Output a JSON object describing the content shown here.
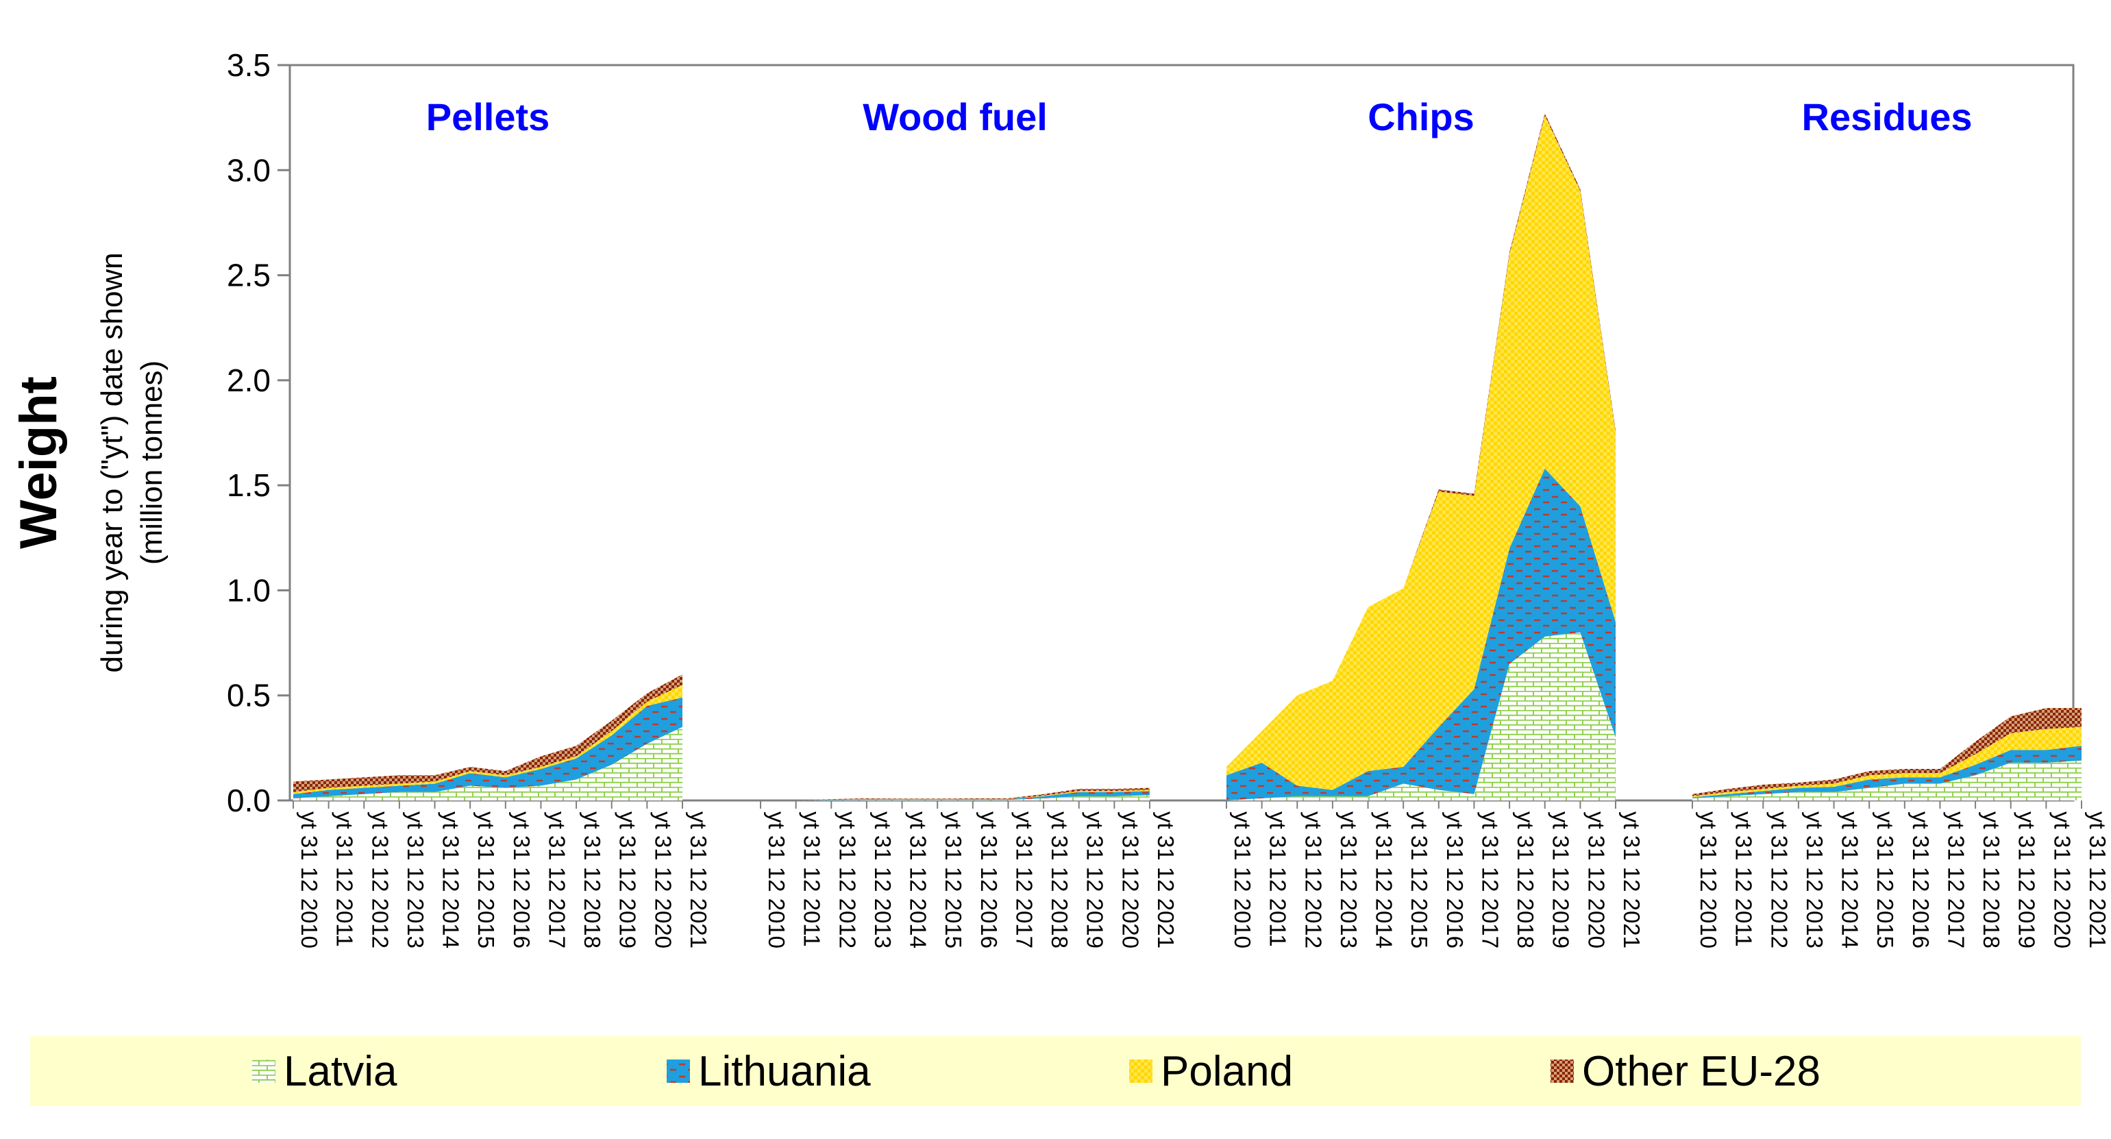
{
  "chart_data": {
    "type": "area",
    "stacked": true,
    "ylabel_main": "Weight",
    "ylabel_sub_1": "during year to (\"yt\") date shown",
    "ylabel_sub_2": "(million tonnes)",
    "ylim": [
      0,
      3.5
    ],
    "yticks": [
      "0.0",
      "0.5",
      "1.0",
      "1.5",
      "2.0",
      "2.5",
      "3.0",
      "3.5"
    ],
    "grid": false,
    "legend_position": "bottom",
    "colors": {
      "Latvia": "#92d050",
      "Lithuania": "#1f9fde",
      "Poland": "#ffd700",
      "Other EU-28": "#8b2500",
      "group_label": "#0000ff",
      "legend_band": "#ffffcc"
    },
    "series_names": [
      "Latvia",
      "Lithuania",
      "Poland",
      "Other EU-28"
    ],
    "groups": [
      {
        "label": "Pellets",
        "x": [
          "yt 31 12 2010",
          "yt 31 12 2011",
          "yt 31 12 2012",
          "yt 31 12 2013",
          "yt 31 12 2014",
          "yt 31 12 2015",
          "yt 31 12 2016",
          "yt 31 12 2017",
          "yt 31 12 2018",
          "yt 31 12 2019",
          "yt 31 12 2020",
          "yt 31 12 2021"
        ],
        "series": [
          {
            "name": "Latvia",
            "values": [
              0.01,
              0.02,
              0.03,
              0.04,
              0.04,
              0.07,
              0.06,
              0.07,
              0.1,
              0.17,
              0.27,
              0.35
            ]
          },
          {
            "name": "Lithuania",
            "values": [
              0.02,
              0.03,
              0.03,
              0.03,
              0.04,
              0.06,
              0.05,
              0.08,
              0.1,
              0.14,
              0.18,
              0.14
            ]
          },
          {
            "name": "Poland",
            "values": [
              0.01,
              0.01,
              0.01,
              0.01,
              0.01,
              0.01,
              0.01,
              0.01,
              0.01,
              0.02,
              0.02,
              0.06
            ]
          },
          {
            "name": "Other EU-28",
            "values": [
              0.05,
              0.04,
              0.04,
              0.04,
              0.03,
              0.02,
              0.02,
              0.05,
              0.05,
              0.05,
              0.04,
              0.05
            ]
          }
        ]
      },
      {
        "label": "Wood fuel",
        "x": [
          "yt 31 12 2010",
          "yt 31 12 2011",
          "yt 31 12 2012",
          "yt 31 12 2013",
          "yt 31 12 2014",
          "yt 31 12 2015",
          "yt 31 12 2016",
          "yt 31 12 2017",
          "yt 31 12 2018",
          "yt 31 12 2019",
          "yt 31 12 2020",
          "yt 31 12 2021"
        ],
        "series": [
          {
            "name": "Latvia",
            "values": [
              0.0,
              0.0,
              0.002,
              0.003,
              0.003,
              0.003,
              0.003,
              0.003,
              0.01,
              0.02,
              0.02,
              0.025
            ]
          },
          {
            "name": "Lithuania",
            "values": [
              0.0,
              0.0,
              0.002,
              0.003,
              0.003,
              0.003,
              0.003,
              0.003,
              0.01,
              0.02,
              0.02,
              0.02
            ]
          },
          {
            "name": "Poland",
            "values": [
              0.0,
              0.0,
              0.0,
              0.001,
              0.001,
              0.001,
              0.001,
              0.001,
              0.003,
              0.005,
              0.005,
              0.005
            ]
          },
          {
            "name": "Other EU-28",
            "values": [
              0.0,
              0.0,
              0.002,
              0.003,
              0.002,
              0.002,
              0.003,
              0.003,
              0.007,
              0.01,
              0.01,
              0.01
            ]
          }
        ]
      },
      {
        "label": "Chips",
        "x": [
          "yt 31 12 2010",
          "yt 31 12 2011",
          "yt 31 12 2012",
          "yt 31 12 2013",
          "yt 31 12 2014",
          "yt 31 12 2015",
          "yt 31 12 2016",
          "yt 31 12 2017",
          "yt 31 12 2018",
          "yt 31 12 2019",
          "yt 31 12 2020",
          "yt 31 12 2021"
        ],
        "series": [
          {
            "name": "Latvia",
            "values": [
              0.0,
              0.01,
              0.02,
              0.02,
              0.02,
              0.08,
              0.05,
              0.03,
              0.65,
              0.78,
              0.8,
              0.3
            ]
          },
          {
            "name": "Lithuania",
            "values": [
              0.12,
              0.17,
              0.05,
              0.03,
              0.12,
              0.08,
              0.3,
              0.5,
              0.55,
              0.8,
              0.6,
              0.55
            ]
          },
          {
            "name": "Poland",
            "values": [
              0.04,
              0.15,
              0.43,
              0.52,
              0.78,
              0.85,
              1.12,
              0.92,
              1.4,
              1.68,
              1.5,
              0.9
            ]
          },
          {
            "name": "Other EU-28",
            "values": [
              0.0,
              0.0,
              0.0,
              0.0,
              0.0,
              0.0,
              0.01,
              0.01,
              0.01,
              0.01,
              0.01,
              0.01
            ]
          }
        ]
      },
      {
        "label": "Residues",
        "x": [
          "yt 31 12 2010",
          "yt 31 12 2011",
          "yt 31 12 2012",
          "yt 31 12 2013",
          "yt 31 12 2014",
          "yt 31 12 2015",
          "yt 31 12 2016",
          "yt 31 12 2017",
          "yt 31 12 2018",
          "yt 31 12 2019",
          "yt 31 12 2020",
          "yt 31 12 2021"
        ],
        "series": [
          {
            "name": "Latvia",
            "values": [
              0.01,
              0.02,
              0.03,
              0.04,
              0.04,
              0.06,
              0.08,
              0.08,
              0.12,
              0.18,
              0.18,
              0.19
            ]
          },
          {
            "name": "Lithuania",
            "values": [
              0.005,
              0.01,
              0.015,
              0.02,
              0.025,
              0.04,
              0.03,
              0.03,
              0.05,
              0.06,
              0.06,
              0.07
            ]
          },
          {
            "name": "Poland",
            "values": [
              0.005,
              0.01,
              0.01,
              0.01,
              0.015,
              0.02,
              0.02,
              0.02,
              0.05,
              0.08,
              0.1,
              0.09
            ]
          },
          {
            "name": "Other EU-28",
            "values": [
              0.01,
              0.015,
              0.02,
              0.015,
              0.02,
              0.02,
              0.02,
              0.02,
              0.06,
              0.08,
              0.1,
              0.09
            ]
          }
        ]
      }
    ]
  }
}
